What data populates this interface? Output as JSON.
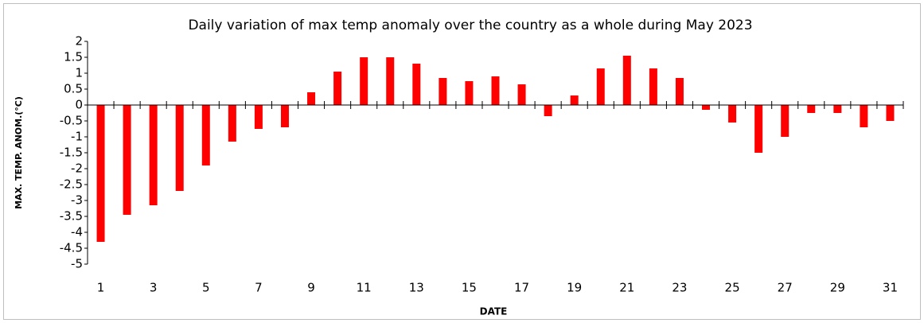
{
  "chart_data": {
    "type": "bar",
    "title": "Daily variation of max temp anomaly over the country as a whole during May 2023",
    "x_label": "DATE",
    "y_label": "MAX. TEMP. ANOM.(°C)",
    "categories": [
      "1",
      null,
      "3",
      null,
      "5",
      null,
      "7",
      null,
      "9",
      null,
      "11",
      null,
      "13",
      null,
      "15",
      null,
      "17",
      null,
      "19",
      null,
      "21",
      null,
      "23",
      null,
      "25",
      null,
      "27",
      null,
      "29",
      null,
      "31"
    ],
    "values": [
      -4.3,
      -3.45,
      -3.15,
      -2.7,
      -1.9,
      -1.15,
      -0.75,
      -0.7,
      0.4,
      1.05,
      1.5,
      1.5,
      1.3,
      0.85,
      0.75,
      0.9,
      0.65,
      -0.35,
      0.3,
      1.15,
      1.55,
      1.15,
      0.85,
      -0.15,
      -0.55,
      -1.5,
      -1.0,
      -0.25,
      -0.25,
      -0.7,
      -0.5
    ],
    "color": "#ff0000",
    "ylim": [
      -5,
      2
    ],
    "yticks": [
      -5,
      -4.5,
      -4,
      -3.5,
      -3,
      -2.5,
      -2,
      -1.5,
      -1,
      -0.5,
      0,
      0.5,
      1,
      1.5,
      2
    ]
  }
}
